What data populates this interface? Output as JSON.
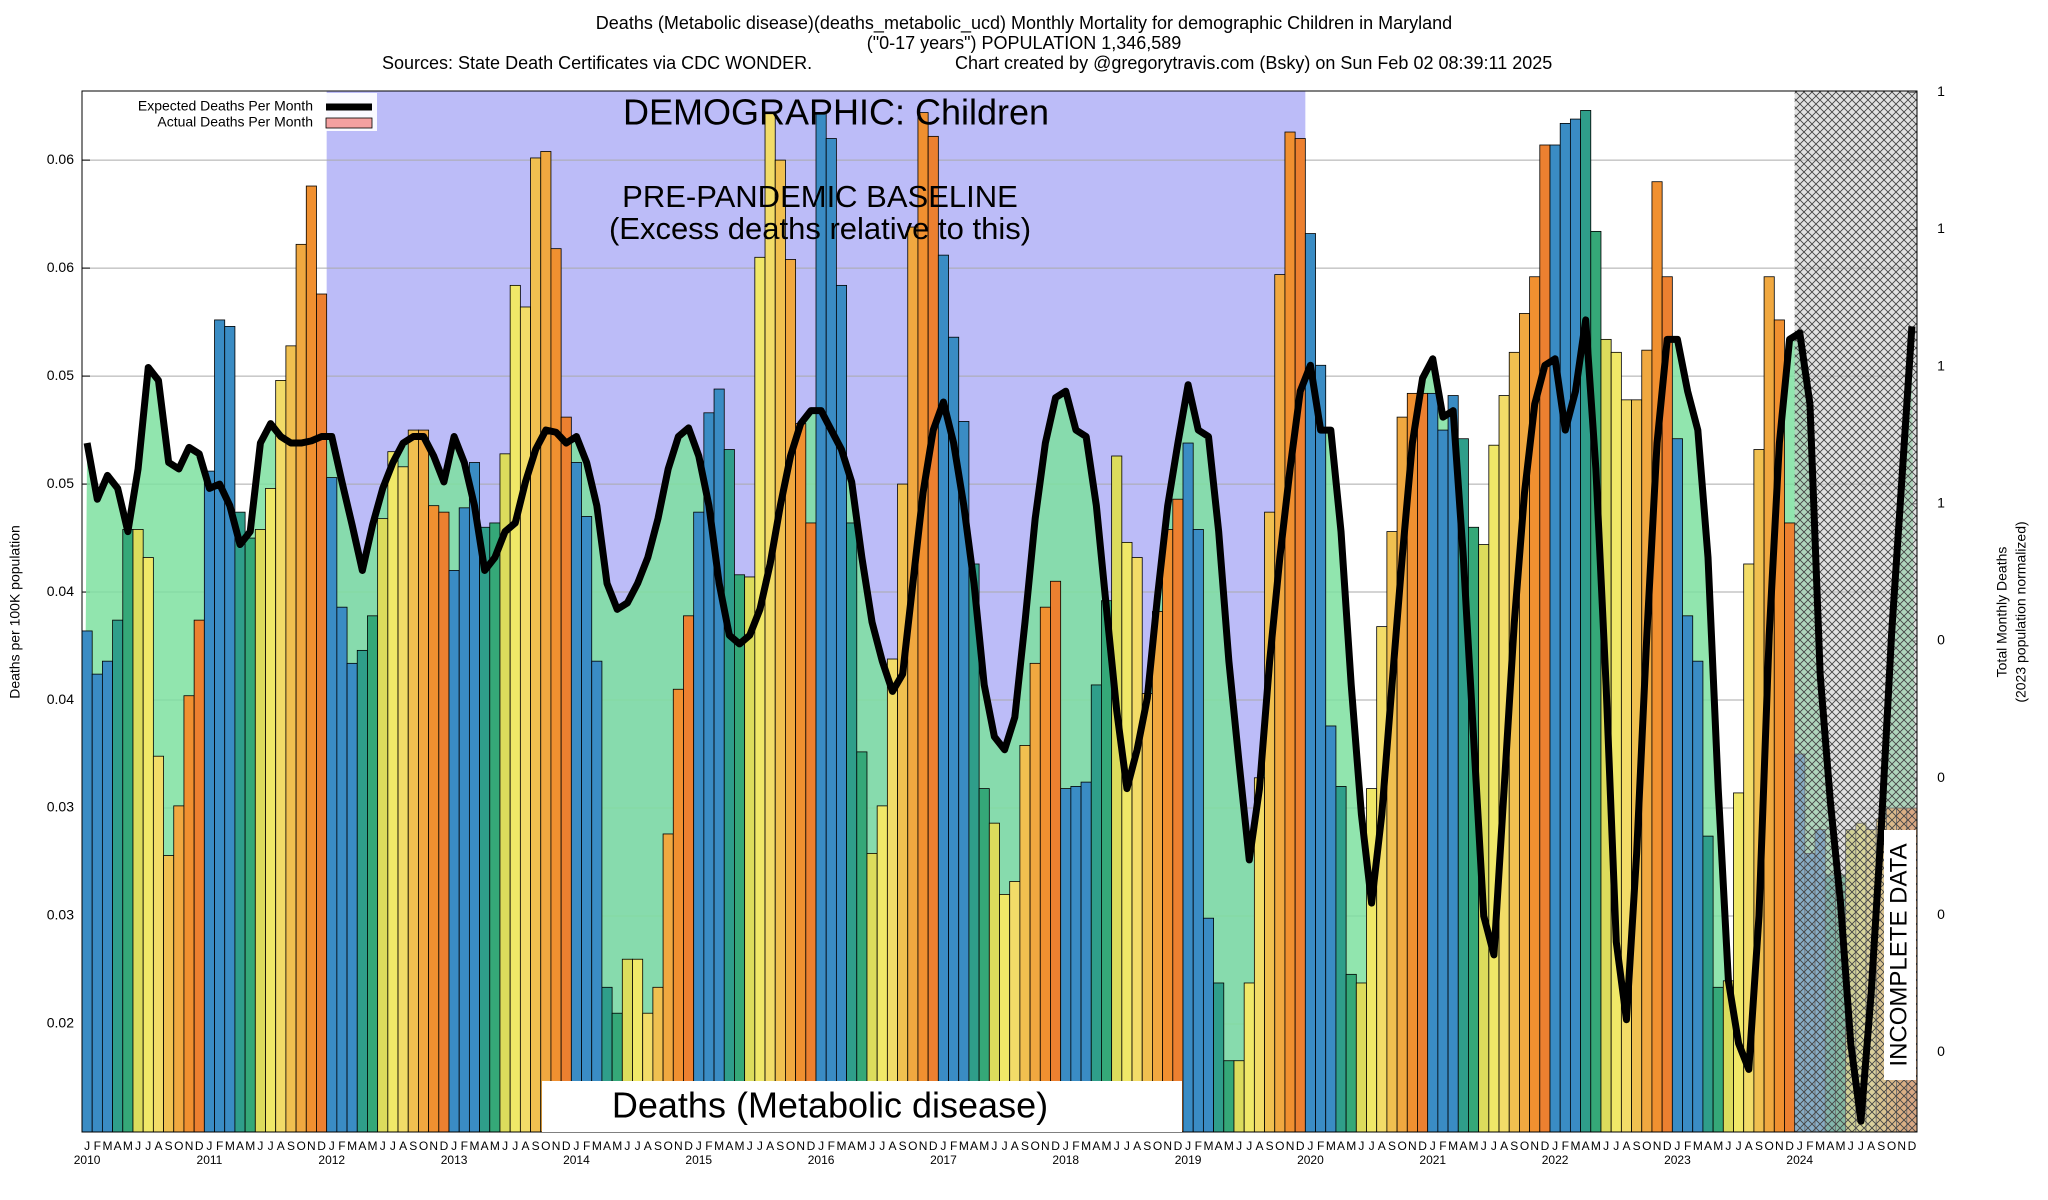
{
  "chart_data": {
    "type": "bar",
    "title": "Deaths (Metabolic disease)(deaths_metabolic_ucd) Monthly Mortality for demographic Children in Maryland",
    "subtitle": "(\"0-17 years\") POPULATION 1,346,589",
    "source": "Sources: State Death Certificates via CDC WONDER.",
    "credit": "Chart created by @gregorytravis.com (Bsky) on Sun Feb 02 08:39:11 2025",
    "ylabel": "Deaths per 100K population",
    "y2label": [
      "Total Monthly Deaths",
      "(2023 population normalized)"
    ],
    "annotations": [
      "DEMOGRAPHIC: Children",
      "PRE-PANDEMIC BASELINE",
      "(Excess deaths relative to this)",
      "Deaths (Metabolic disease)",
      "INCOMPLETE DATA"
    ],
    "categories": [
      "J",
      "F",
      "M",
      "A",
      "M",
      "J",
      "J",
      "A",
      "S",
      "O",
      "N",
      "D",
      "J",
      "F",
      "M",
      "A",
      "M",
      "J",
      "J",
      "A",
      "S",
      "O",
      "N",
      "D",
      "J",
      "F",
      "M",
      "A",
      "M",
      "J",
      "J",
      "A",
      "S",
      "O",
      "N",
      "D",
      "J",
      "F",
      "M",
      "A",
      "M",
      "J",
      "J",
      "A",
      "S",
      "O",
      "N",
      "D",
      "J",
      "F",
      "M",
      "A",
      "M",
      "J",
      "J",
      "A",
      "S",
      "O",
      "N",
      "D",
      "J",
      "F",
      "M",
      "A",
      "M",
      "J",
      "J",
      "A",
      "S",
      "O",
      "N",
      "D",
      "J",
      "F",
      "M",
      "A",
      "M",
      "J",
      "J",
      "A",
      "S",
      "O",
      "N",
      "D",
      "J",
      "F",
      "M",
      "A",
      "M",
      "J",
      "J",
      "A",
      "S",
      "O",
      "N",
      "D",
      "J",
      "F",
      "M",
      "A",
      "M",
      "J",
      "J",
      "A",
      "S",
      "O",
      "N",
      "D",
      "J",
      "F",
      "M",
      "A",
      "M",
      "J",
      "J",
      "A",
      "S",
      "O",
      "N",
      "D",
      "J",
      "F",
      "M",
      "A",
      "M",
      "J",
      "J",
      "A",
      "S",
      "O",
      "N",
      "D",
      "J",
      "F",
      "M",
      "A",
      "M",
      "J",
      "J",
      "A",
      "S",
      "O",
      "N",
      "D",
      "J",
      "F",
      "M",
      "A",
      "M",
      "J",
      "J",
      "A",
      "S",
      "O",
      "N",
      "D",
      "J",
      "F",
      "M",
      "A",
      "M",
      "J",
      "J",
      "A",
      "S",
      "O",
      "N",
      "D",
      "J",
      "F",
      "M",
      "A",
      "M",
      "J",
      "J",
      "A",
      "S",
      "O",
      "N",
      "D"
    ],
    "years": [
      "2010",
      "2011",
      "2012",
      "2013",
      "2014",
      "2015",
      "2016",
      "2017",
      "2018",
      "2019",
      "2020",
      "2021",
      "2022",
      "2023",
      "2024"
    ],
    "bar_colors": [
      "#3a8cc4",
      "#3a8cc4",
      "#3a8cc4",
      "#2f9e8a",
      "#35a878",
      "#dcdc5c",
      "#f0e868",
      "#f2dc68",
      "#f0c050",
      "#f0a840",
      "#f09030",
      "#ec8030"
    ],
    "series": [
      {
        "name": "Actual Deaths Per Month",
        "color": "#f4a0a0",
        "values": [
          0.0382,
          0.0362,
          0.0368,
          0.0387,
          0.0429,
          0.0429,
          0.0416,
          0.0324,
          0.0278,
          0.0301,
          0.0352,
          0.0387,
          0.0456,
          0.0526,
          0.0523,
          0.0437,
          0.0425,
          0.0429,
          0.0448,
          0.0498,
          0.0514,
          0.0561,
          0.0588,
          0.0538,
          0.0453,
          0.0393,
          0.0367,
          0.0373,
          0.0389,
          0.0434,
          0.0465,
          0.0458,
          0.0475,
          0.0475,
          0.044,
          0.0437,
          0.041,
          0.0439,
          0.046,
          0.043,
          0.0432,
          0.0464,
          0.0542,
          0.0532,
          0.0601,
          0.0604,
          0.0559,
          0.0481,
          0.046,
          0.0435,
          0.0368,
          0.0217,
          0.0205,
          0.023,
          0.023,
          0.0205,
          0.0217,
          0.0288,
          0.0355,
          0.0389,
          0.0437,
          0.0483,
          0.0494,
          0.0466,
          0.0408,
          0.0407,
          0.0555,
          0.0622,
          0.06,
          0.0554,
          0.0478,
          0.0432,
          0.0622,
          0.061,
          0.0542,
          0.0432,
          0.0326,
          0.0279,
          0.0301,
          0.0369,
          0.045,
          0.0569,
          0.0622,
          0.0611,
          0.0556,
          0.0518,
          0.0479,
          0.0413,
          0.0309,
          0.0293,
          0.026,
          0.0266,
          0.0329,
          0.0367,
          0.0393,
          0.0405,
          0.0309,
          0.031,
          0.0312,
          0.0357,
          0.0396,
          0.0463,
          0.0423,
          0.0416,
          0.0353,
          0.0391,
          0.0429,
          0.0443,
          0.0469,
          0.0429,
          0.0249,
          0.0219,
          0.0183,
          0.0183,
          0.0219,
          0.0314,
          0.0437,
          0.0547,
          0.0613,
          0.061,
          0.0566,
          0.0505,
          0.0338,
          0.031,
          0.0223,
          0.0219,
          0.0309,
          0.0384,
          0.0428,
          0.0481,
          0.0492,
          0.0492,
          0.0492,
          0.0475,
          0.0491,
          0.0471,
          0.043,
          0.0422,
          0.0468,
          0.0491,
          0.0511,
          0.0529,
          0.0546,
          0.0607,
          0.0607,
          0.0617,
          0.0619,
          0.0623,
          0.0567,
          0.0517,
          0.0511,
          0.0489,
          0.0489,
          0.0512,
          0.059,
          0.0546,
          0.0471,
          0.0389,
          0.0368,
          0.0287,
          0.0217,
          0.022,
          0.0307,
          0.0413,
          0.0466,
          0.0546,
          0.0526,
          0.0432,
          0.0325,
          0.0279,
          0.029,
          0.0269,
          0.0269,
          0.029,
          0.0293,
          0.029,
          0.0295,
          0.03,
          0.03,
          0.03
        ]
      },
      {
        "name": "Expected Deaths Per Month",
        "color": "#000000",
        "values": [
          0.0469,
          0.0443,
          0.0454,
          0.0448,
          0.0428,
          0.0457,
          0.0504,
          0.0498,
          0.046,
          0.0457,
          0.0467,
          0.0464,
          0.0448,
          0.045,
          0.044,
          0.0422,
          0.0428,
          0.0469,
          0.0478,
          0.0472,
          0.0469,
          0.0469,
          0.047,
          0.0472,
          0.0472,
          0.0451,
          0.0431,
          0.041,
          0.0431,
          0.0448,
          0.046,
          0.0469,
          0.0472,
          0.0472,
          0.0463,
          0.0451,
          0.0472,
          0.046,
          0.044,
          0.041,
          0.0416,
          0.0428,
          0.0432,
          0.0451,
          0.0466,
          0.0475,
          0.0474,
          0.0469,
          0.0472,
          0.046,
          0.044,
          0.0404,
          0.0392,
          0.0395,
          0.0404,
          0.0416,
          0.0434,
          0.0457,
          0.0472,
          0.0476,
          0.0463,
          0.044,
          0.0404,
          0.038,
          0.0376,
          0.038,
          0.0392,
          0.0413,
          0.044,
          0.0463,
          0.0478,
          0.0484,
          0.0484,
          0.0475,
          0.0466,
          0.0451,
          0.0416,
          0.0386,
          0.0368,
          0.0354,
          0.0362,
          0.0404,
          0.0446,
          0.0475,
          0.0488,
          0.0469,
          0.044,
          0.0404,
          0.0357,
          0.0333,
          0.0327,
          0.0342,
          0.0386,
          0.0434,
          0.0469,
          0.049,
          0.0493,
          0.0475,
          0.0472,
          0.044,
          0.0392,
          0.0345,
          0.0309,
          0.0327,
          0.0351,
          0.0398,
          0.044,
          0.0469,
          0.0496,
          0.0475,
          0.0472,
          0.0428,
          0.0368,
          0.0321,
          0.0276,
          0.0309,
          0.0368,
          0.0416,
          0.0457,
          0.0493,
          0.0505,
          0.0475,
          0.0475,
          0.0428,
          0.0357,
          0.0297,
          0.0256,
          0.0297,
          0.0357,
          0.0416,
          0.0469,
          0.0499,
          0.0508,
          0.0481,
          0.0484,
          0.0416,
          0.0333,
          0.025,
          0.0232,
          0.0309,
          0.0386,
          0.0446,
          0.0487,
          0.0505,
          0.0508,
          0.0475,
          0.0493,
          0.0526,
          0.0457,
          0.0357,
          0.0238,
          0.0202,
          0.0279,
          0.038,
          0.0469,
          0.0517,
          0.0517,
          0.0493,
          0.0475,
          0.0416,
          0.0309,
          0.022,
          0.0191,
          0.0179,
          0.025,
          0.038,
          0.0469,
          0.0517,
          0.052,
          0.0487,
          0.0362,
          0.0303,
          0.0256,
          0.0191,
          0.0155,
          0.0214,
          0.0291,
          0.038,
          0.0451,
          0.0523
        ]
      }
    ],
    "ylim": [
      0.015,
      0.0632
    ],
    "yticks": [
      0.02,
      {
        "value": 0.025,
        "label": "0.03"
      },
      0.03,
      {
        "value": 0.035,
        "label": "0.04"
      },
      0.04,
      {
        "value": 0.045,
        "label": "0.05"
      },
      0.05,
      {
        "value": 0.055,
        "label": "0.06"
      },
      0.06
    ],
    "y2lim": [
      0.042,
      0.801
    ],
    "y2ticks": [
      {
        "value": 0.1,
        "label": "0"
      },
      {
        "value": 0.2,
        "label": "0"
      },
      {
        "value": 0.3,
        "label": "0"
      },
      {
        "value": 0.4,
        "label": "0"
      },
      {
        "value": 0.5,
        "label": "1"
      },
      {
        "value": 0.6,
        "label": "1"
      },
      {
        "value": 0.7,
        "label": "1"
      },
      {
        "value": 0.8,
        "label": "1"
      }
    ],
    "grid": true,
    "legend": "top-left"
  }
}
